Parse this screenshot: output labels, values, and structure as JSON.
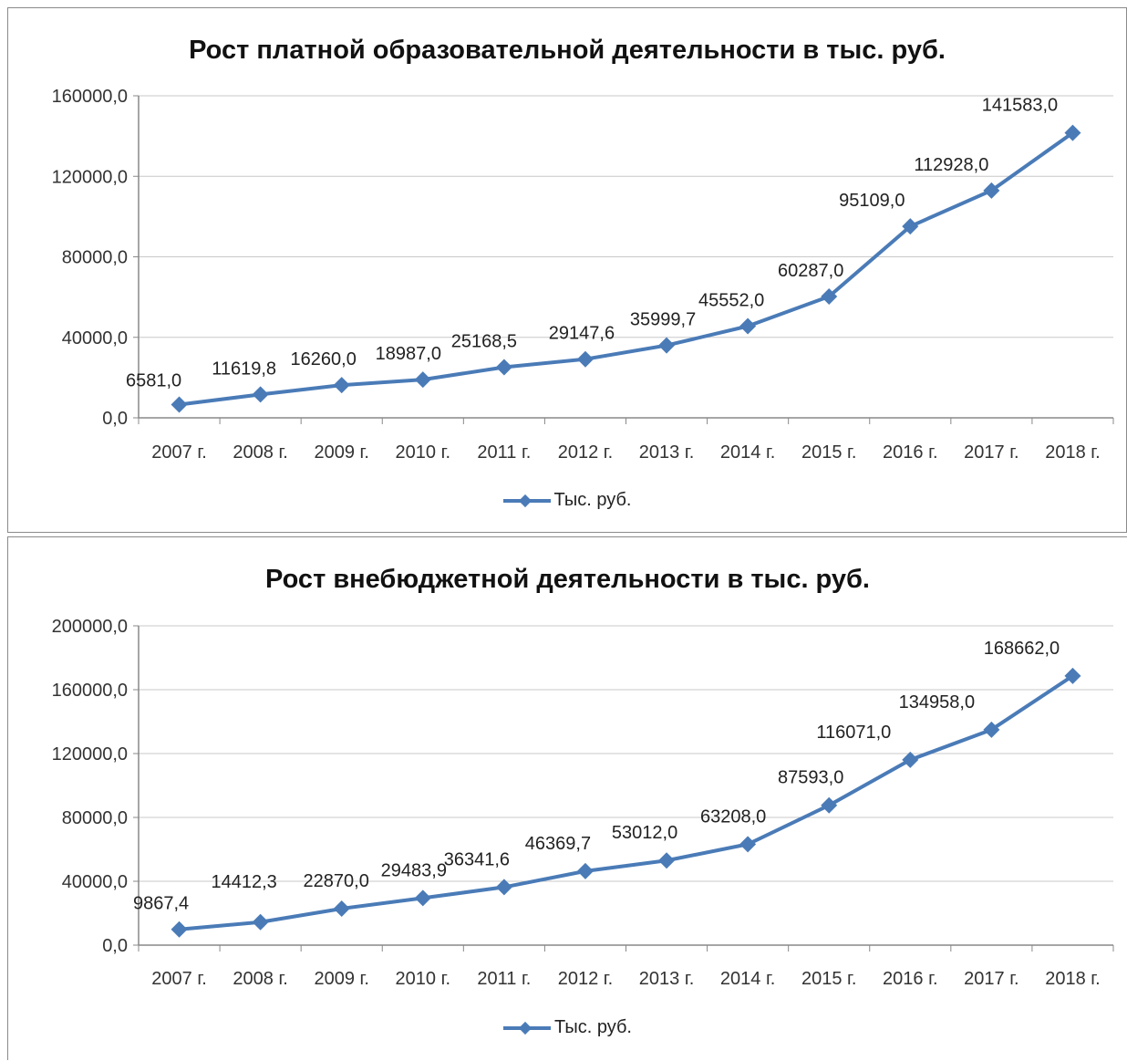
{
  "colors": {
    "series": "#4a7bb7",
    "grid": "#c8c8c8",
    "axis": "#888888"
  },
  "chart_data": [
    {
      "type": "line",
      "title": "Рост платной образовательной деятельности в тыс. руб.",
      "categories": [
        "2007 г.",
        "2008 г.",
        "2009 г.",
        "2010 г.",
        "2011 г.",
        "2012 г.",
        "2013 г.",
        "2014 г.",
        "2015 г.",
        "2016 г.",
        "2017 г.",
        "2018 г."
      ],
      "series": [
        {
          "name": "Тыс. руб.",
          "values": [
            6581.0,
            11619.8,
            16260.0,
            18987.0,
            25168.5,
            29147.6,
            35999.7,
            45552.0,
            60287.0,
            95109.0,
            112928.0,
            141583.0
          ],
          "labels": [
            "6581,0",
            "11619,8",
            "16260,0",
            "18987,0",
            "25168,5",
            "29147,6",
            "35999,7",
            "45552,0",
            "60287,0",
            "95109,0",
            "112928,0",
            "141583,0"
          ]
        }
      ],
      "yticks": [
        "0,0",
        "40000,0",
        "80000,0",
        "120000,0",
        "160000,0"
      ],
      "ylim": [
        0,
        160000
      ],
      "grid": true,
      "legend": "bottom",
      "marker": "diamond"
    },
    {
      "type": "line",
      "title": "Рост внебюджетной деятельности в тыс. руб.",
      "categories": [
        "2007 г.",
        "2008 г.",
        "2009 г.",
        "2010 г.",
        "2011 г.",
        "2012 г.",
        "2013 г.",
        "2014 г.",
        "2015 г.",
        "2016 г.",
        "2017 г.",
        "2018 г."
      ],
      "series": [
        {
          "name": "Тыс. руб.",
          "values": [
            9867.4,
            14412.3,
            22870.0,
            29483.9,
            36341.6,
            46369.7,
            53012.0,
            63208.0,
            87593.0,
            116071.0,
            134958.0,
            168662.0
          ],
          "labels": [
            "9867,4",
            "14412,3",
            "22870,0",
            "29483,9",
            "36341,6",
            "46369,7",
            "53012,0",
            "63208,0",
            "87593,0",
            "116071,0",
            "134958,0",
            "168662,0"
          ]
        }
      ],
      "yticks": [
        "0,0",
        "40000,0",
        "80000,0",
        "120000,0",
        "160000,0",
        "200000,0"
      ],
      "ylim": [
        0,
        200000
      ],
      "grid": true,
      "legend": "bottom",
      "marker": "diamond"
    }
  ]
}
